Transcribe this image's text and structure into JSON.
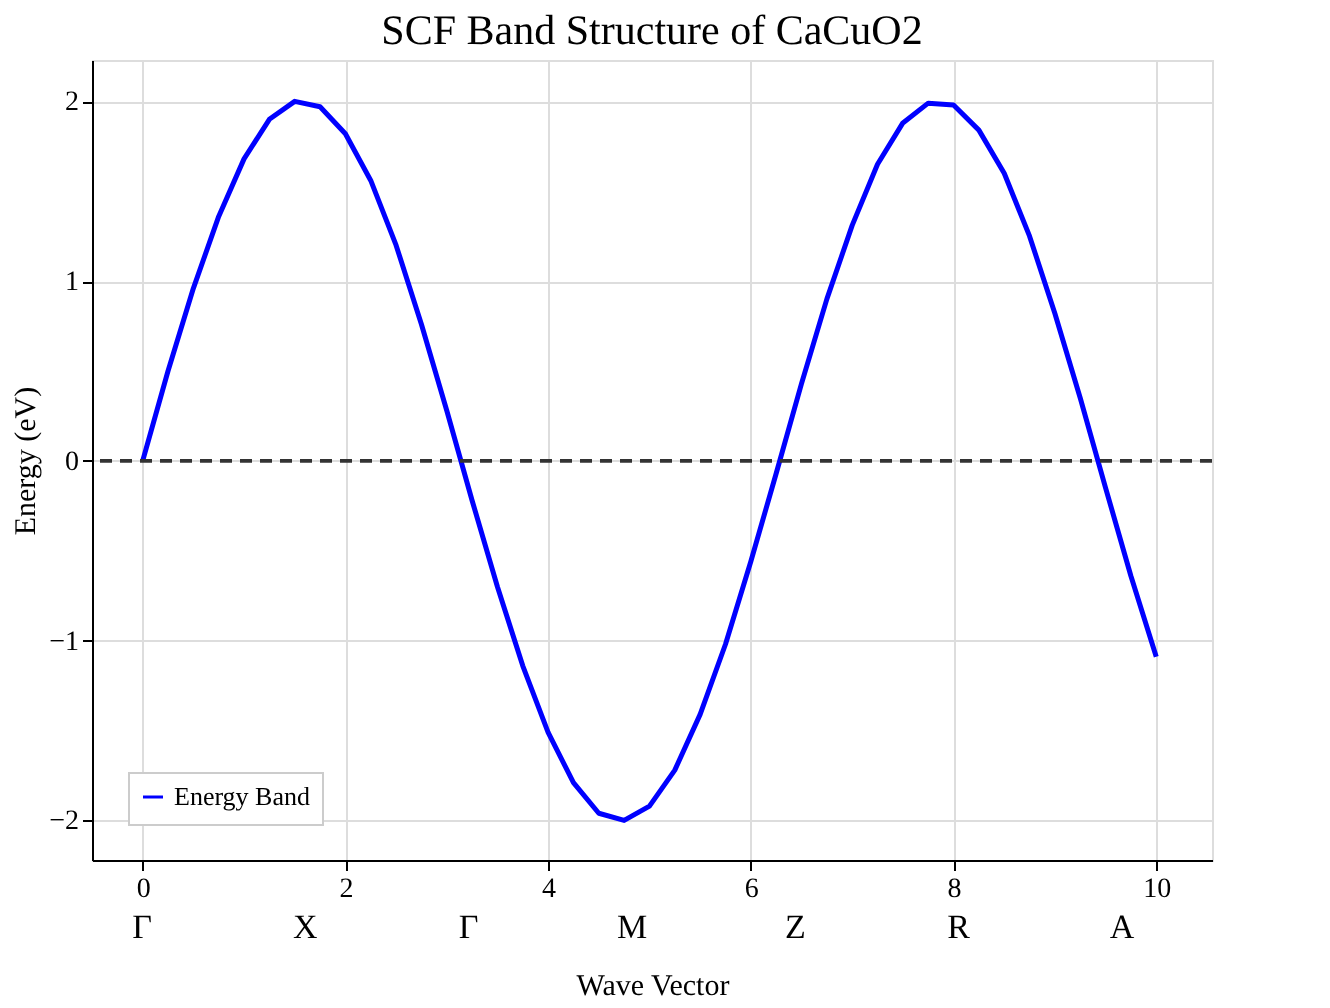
{
  "chart_data": {
    "type": "line",
    "title": "SCF Band Structure of CaCuO2",
    "xlabel": "Wave Vector",
    "ylabel": "Energy (eV)",
    "x": [
      0,
      0.25,
      0.5,
      0.75,
      1,
      1.25,
      1.5,
      1.75,
      2,
      2.25,
      2.5,
      2.75,
      3,
      3.25,
      3.5,
      3.75,
      4,
      4.25,
      4.5,
      4.75,
      5,
      5.25,
      5.5,
      5.75,
      6,
      6.25,
      6.5,
      6.75,
      7,
      7.25,
      7.5,
      7.75,
      8,
      8.25,
      8.5,
      8.75,
      9,
      9.25,
      9.5,
      9.75,
      10
    ],
    "series": [
      {
        "name": "Energy Band",
        "color": "#0000ff",
        "values": [
          0,
          0.5,
          0.96,
          1.36,
          1.68,
          1.9,
          2.0,
          1.97,
          1.82,
          1.56,
          1.2,
          0.76,
          0.28,
          -0.22,
          -0.7,
          -1.14,
          -1.51,
          -1.79,
          -1.96,
          -2.0,
          -1.92,
          -1.72,
          -1.41,
          -1.02,
          -0.56,
          -0.07,
          0.43,
          0.9,
          1.31,
          1.65,
          1.88,
          1.99,
          1.98,
          1.84,
          1.6,
          1.25,
          0.82,
          0.35,
          -0.15,
          -0.64,
          -1.09
        ]
      }
    ],
    "xlim": [
      -0.5,
      10.55
    ],
    "ylim": [
      -2.22,
      2.23
    ],
    "xticks": [
      0,
      2,
      4,
      6,
      8,
      10
    ],
    "yticks": [
      -2,
      -1,
      0,
      1,
      2
    ],
    "ref_lines": [
      {
        "axis": "y",
        "value": 0,
        "color": "#333333",
        "line_style": "dashed"
      }
    ],
    "annotations": [
      "Γ",
      "X",
      "Γ",
      "M",
      "Z",
      "R",
      "A"
    ],
    "grid": true,
    "legend": "bottom left",
    "marker": "none",
    "line_style": "solid"
  }
}
